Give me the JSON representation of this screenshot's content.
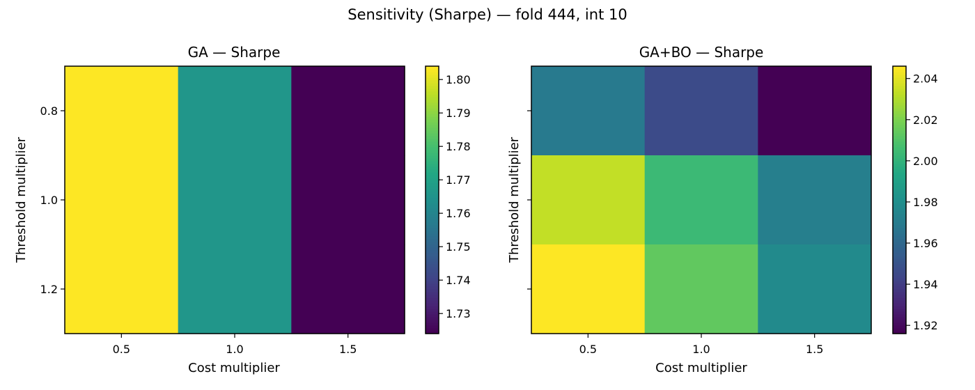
{
  "figure": {
    "suptitle": "Sensitivity (Sharpe) — fold 444, int 10"
  },
  "chart_data": [
    {
      "type": "heatmap",
      "title": "GA — Sharpe",
      "xlabel": "Cost multiplier",
      "ylabel": "Threshold multiplier",
      "x_categories": [
        "0.5",
        "1.0",
        "1.5"
      ],
      "y_categories": [
        "0.8",
        "1.0",
        "1.2"
      ],
      "show_ytick_labels": true,
      "values": [
        [
          1.804,
          1.766,
          1.724
        ],
        [
          1.804,
          1.766,
          1.724
        ],
        [
          1.804,
          1.766,
          1.724
        ]
      ],
      "colormap": "viridis",
      "clim": [
        1.724,
        1.804
      ],
      "colorbar_ticks": [
        "1.73",
        "1.74",
        "1.75",
        "1.76",
        "1.77",
        "1.78",
        "1.79",
        "1.80"
      ]
    },
    {
      "type": "heatmap",
      "title": "GA+BO — Sharpe",
      "xlabel": "Cost multiplier",
      "ylabel": "Threshold multiplier",
      "x_categories": [
        "0.5",
        "1.0",
        "1.5"
      ],
      "y_categories": [
        "0.8",
        "1.0",
        "1.2"
      ],
      "show_ytick_labels": false,
      "values": [
        [
          1.969,
          1.946,
          1.916
        ],
        [
          2.034,
          2.004,
          1.972
        ],
        [
          2.046,
          2.014,
          1.978
        ]
      ],
      "colormap": "viridis",
      "clim": [
        1.916,
        2.046
      ],
      "colorbar_ticks": [
        "1.92",
        "1.94",
        "1.96",
        "1.98",
        "2.00",
        "2.02",
        "2.04"
      ]
    }
  ]
}
